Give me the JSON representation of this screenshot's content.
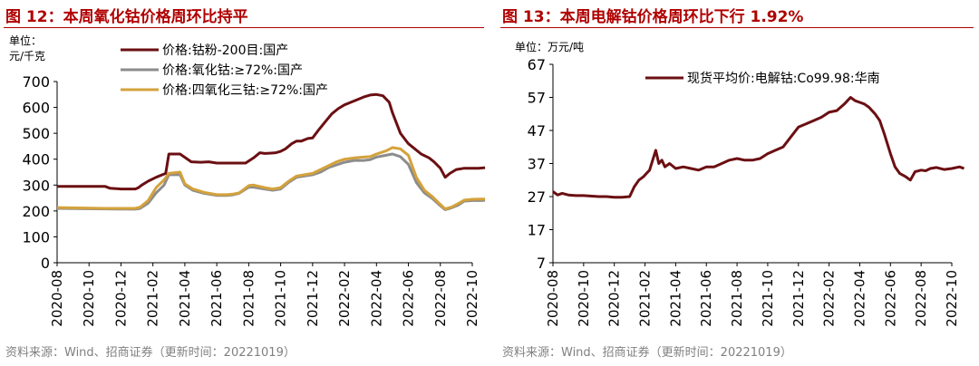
{
  "colors": {
    "title": "#b00000",
    "series_dark": "#6b0f12",
    "series_gray": "#8c8c8c",
    "series_gold": "#d4a23c",
    "axis": "#000000",
    "source": "#808080"
  },
  "chart_data": [
    {
      "type": "line",
      "title": "图 12：本周氧化钴价格周环比持平",
      "unit_line1": "单位：",
      "unit_line2": "元/千克",
      "source": "资料来源：Wind、招商证券（更新时间：20221019）",
      "ylim": [
        0,
        700
      ],
      "yticks": [
        "700",
        "600",
        "500",
        "400",
        "300",
        "200",
        "100",
        "0"
      ],
      "xticks": [
        "2020-08",
        "2020-10",
        "2020-12",
        "2021-02",
        "2021-04",
        "2021-06",
        "2021-08",
        "2021-10",
        "2021-12",
        "2022-02",
        "2022-04",
        "2022-06",
        "2022-08",
        "2022-10"
      ],
      "xlabel": "",
      "ylabel": "",
      "legend_position": "top",
      "series": [
        {
          "name": "价格:钴粉-200目:国产",
          "x": [
            0,
            3,
            3.3,
            4,
            4.9,
            5.1,
            5.3,
            5.7,
            6.2,
            6.8,
            7,
            7.7,
            8.4,
            9,
            9.5,
            10,
            10.5,
            11,
            11.4,
            11.8,
            12.3,
            12.7,
            13,
            13.3,
            13.7,
            14,
            14.3,
            14.7,
            15,
            15.3,
            15.7,
            16,
            16.4,
            16.8,
            17.2,
            17.6,
            18,
            18.4,
            18.8,
            19.2,
            19.6,
            20,
            20.4,
            20.8,
            21,
            21.5,
            22,
            22.4,
            22.8,
            23.3,
            23.6,
            24,
            24.3,
            24.6,
            25,
            25.5,
            26,
            26.4,
            26.8
          ],
          "y": [
            295,
            295,
            288,
            285,
            285,
            290,
            300,
            315,
            330,
            345,
            420,
            420,
            390,
            388,
            390,
            385,
            385,
            385,
            385,
            385,
            405,
            425,
            422,
            423,
            425,
            430,
            440,
            460,
            470,
            470,
            480,
            482,
            515,
            545,
            575,
            595,
            610,
            620,
            630,
            640,
            648,
            650,
            645,
            620,
            580,
            500,
            460,
            440,
            420,
            405,
            390,
            365,
            330,
            345,
            360,
            365,
            365,
            365,
            367
          ],
          "color": "#6b0f12"
        },
        {
          "name": "价格:氧化钴:≥72%:国产",
          "x": [
            0,
            3,
            4.9,
            5.2,
            5.7,
            6.2,
            6.7,
            7,
            7.7,
            8,
            8.5,
            9.2,
            10,
            10.6,
            11,
            11.4,
            12,
            12.3,
            13,
            13.5,
            14,
            14.5,
            15,
            15.5,
            16,
            16.5,
            17,
            17.5,
            18,
            18.6,
            19.2,
            19.6,
            20,
            20.6,
            21,
            21.5,
            22,
            22.5,
            23,
            23.5,
            24,
            24.3,
            24.7,
            25.1,
            25.5,
            26,
            26.5,
            26.8
          ],
          "y": [
            210,
            208,
            207,
            210,
            230,
            270,
            300,
            340,
            340,
            300,
            280,
            268,
            260,
            260,
            262,
            268,
            292,
            292,
            285,
            280,
            285,
            310,
            330,
            335,
            340,
            350,
            368,
            378,
            388,
            395,
            395,
            398,
            408,
            415,
            420,
            410,
            380,
            310,
            270,
            248,
            220,
            205,
            212,
            222,
            238,
            240,
            240,
            241
          ],
          "color": "#8c8c8c"
        },
        {
          "name": "价格:四氧化三钴:≥72%:国产",
          "x": [
            0,
            3,
            4.9,
            5.2,
            5.7,
            6.2,
            6.7,
            7,
            7.7,
            8,
            8.5,
            9.2,
            10,
            10.6,
            11,
            11.4,
            12,
            12.3,
            13,
            13.5,
            14,
            14.5,
            15,
            15.5,
            16,
            16.5,
            17,
            17.5,
            18,
            18.6,
            19.2,
            19.6,
            20,
            20.6,
            21,
            21.5,
            22,
            22.5,
            23,
            23.5,
            24,
            24.3,
            24.7,
            25.1,
            25.5,
            26,
            26.5,
            26.8
          ],
          "y": [
            213,
            210,
            210,
            215,
            240,
            290,
            320,
            345,
            350,
            305,
            285,
            272,
            263,
            263,
            265,
            270,
            298,
            300,
            290,
            285,
            290,
            315,
            335,
            340,
            345,
            360,
            375,
            390,
            400,
            405,
            408,
            410,
            420,
            432,
            445,
            440,
            415,
            330,
            280,
            255,
            225,
            208,
            215,
            228,
            242,
            245,
            246,
            246
          ],
          "color": "#d4a23c"
        }
      ]
    },
    {
      "type": "line",
      "title": "图 13：本周电解钴价格周环比下行 1.92%",
      "unit": "单位：万元/吨",
      "source": "资料来源：Wind、招商证券（更新时间：20221019）",
      "ylim": [
        7,
        67
      ],
      "yticks": [
        "67",
        "57",
        "47",
        "37",
        "27",
        "17",
        "7"
      ],
      "xticks": [
        "2020-08",
        "2020-10",
        "2020-12",
        "2021-02",
        "2021-04",
        "2021-06",
        "2021-08",
        "2021-10",
        "2021-12",
        "2022-02",
        "2022-04",
        "2022-06",
        "2022-08",
        "2022-10"
      ],
      "xlabel": "",
      "ylabel": "",
      "legend_position": "top",
      "series": [
        {
          "name": "现货平均价:电解钴:Co99.98:华南",
          "x": [
            0,
            0.3,
            0.6,
            1,
            1.5,
            2,
            3,
            3.5,
            4,
            4.5,
            5,
            5.3,
            5.6,
            5.9,
            6.1,
            6.3,
            6.5,
            6.7,
            6.9,
            7.1,
            7.3,
            7.6,
            8,
            8.5,
            9,
            9.5,
            10,
            10.5,
            11,
            11.5,
            12,
            12.5,
            13,
            13.5,
            14,
            14.5,
            15,
            15.5,
            16,
            16.5,
            17,
            17.5,
            18,
            18.5,
            19,
            19.4,
            19.7,
            20,
            20.3,
            20.6,
            21,
            21.3,
            21.6,
            22,
            22.3,
            22.6,
            23,
            23.3,
            23.6,
            24,
            24.3,
            24.6,
            25,
            25.5,
            26,
            26.5,
            26.8
          ],
          "y": [
            28.5,
            27.5,
            28,
            27.5,
            27.3,
            27.3,
            27,
            27,
            26.8,
            26.8,
            27,
            30,
            32,
            33,
            34,
            35,
            38,
            41,
            37,
            38,
            36,
            37,
            35.5,
            36,
            35.5,
            35,
            36,
            36,
            37,
            38,
            38.5,
            38,
            38,
            38.5,
            40,
            41,
            42,
            45,
            48,
            49,
            50,
            51,
            52.5,
            53,
            55,
            57,
            56,
            55.5,
            55,
            54,
            52,
            50,
            46,
            40,
            36,
            34,
            33,
            32,
            34.5,
            35,
            34.8,
            35.5,
            35.8,
            35.2,
            35.5,
            36,
            35.5
          ],
          "color": "#6b0f12"
        }
      ]
    }
  ]
}
